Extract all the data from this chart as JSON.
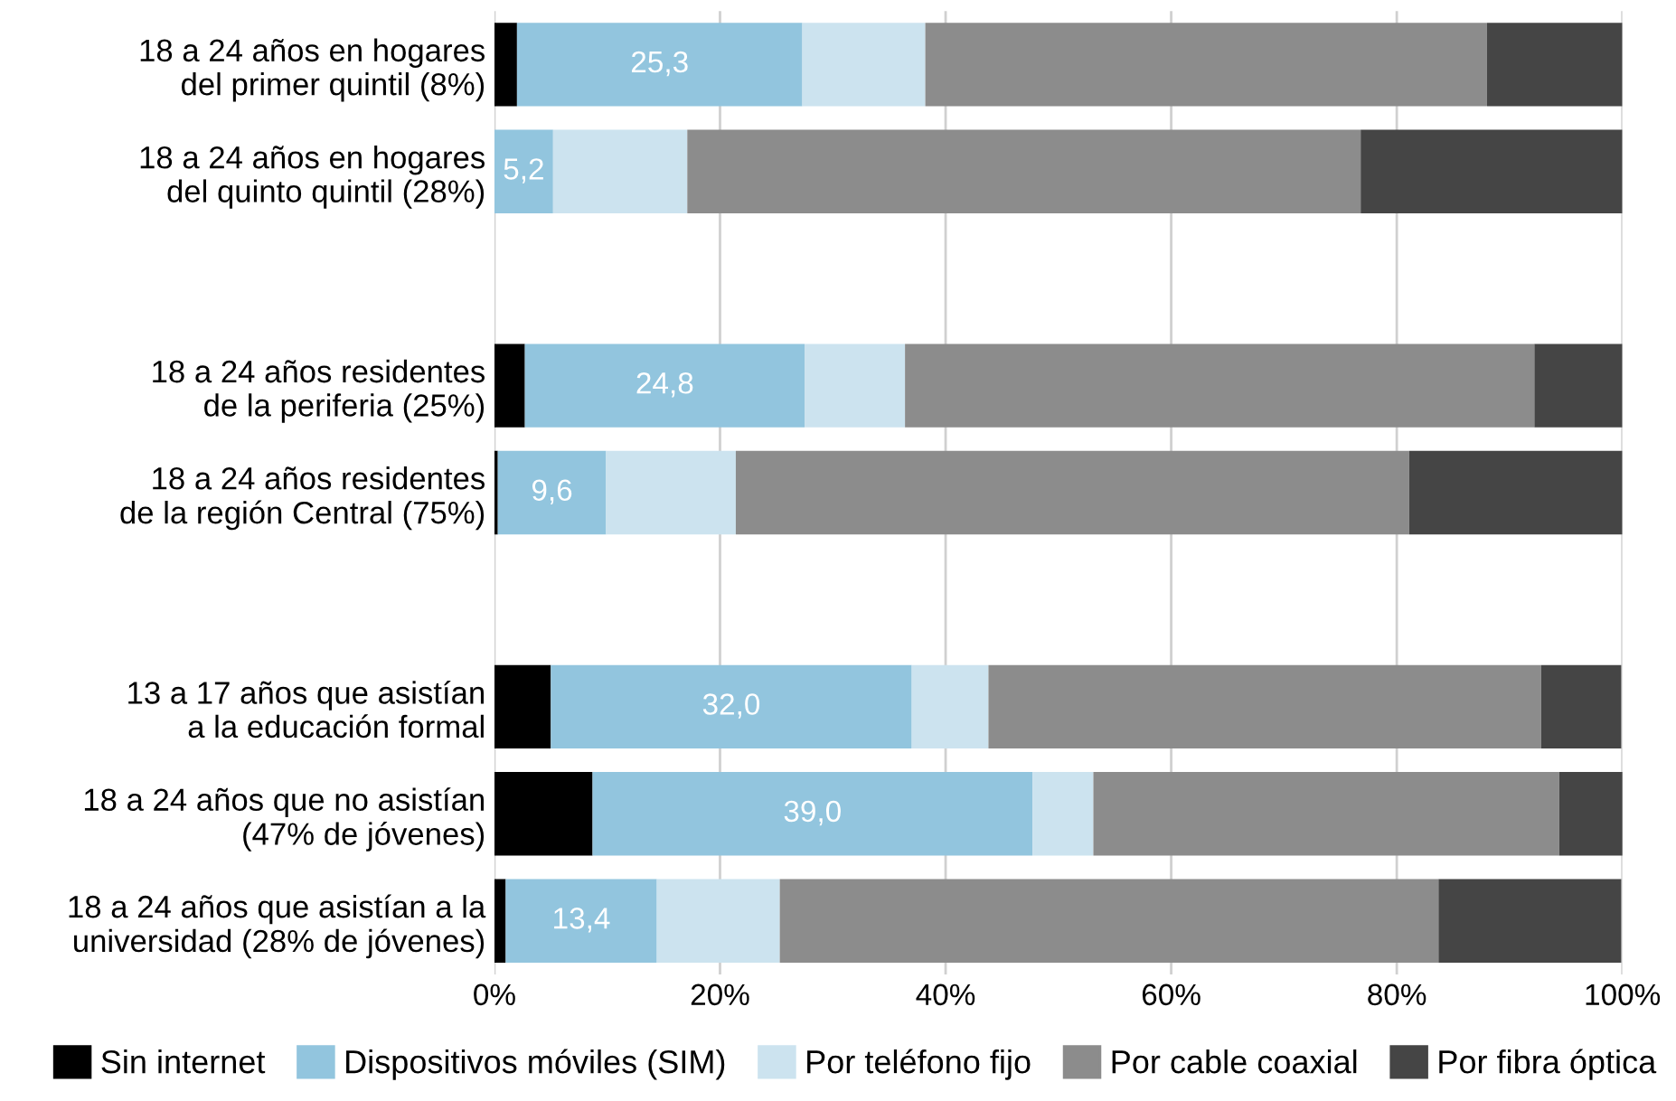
{
  "chart_data": {
    "type": "bar",
    "orientation": "horizontal",
    "stacked": true,
    "categories": [
      "18 a 24 años en hogares\ndel primer quintil (8%)",
      "18 a 24 años en hogares\ndel quinto quintil (28%)",
      null,
      "18 a 24 años residentes\nde la periferia (25%)",
      "18 a 24 años residentes\nde la región Central (75%)",
      null,
      "13 a 17 años que asistían\na la educación formal",
      "18 a 24 años que no asistían\n(47% de jóvenes)",
      "18 a 24 años que asistían a la\nuniversidad (28% de jóvenes)"
    ],
    "series": [
      {
        "name": "Sin internet",
        "color": "#000000",
        "values": [
          2.0,
          0,
          null,
          2.7,
          0.3,
          null,
          5.0,
          8.7,
          1.0
        ]
      },
      {
        "name": "Dispositivos móviles (SIM)",
        "color": "#92c5de",
        "values": [
          25.3,
          5.2,
          null,
          24.8,
          9.6,
          null,
          32.0,
          39.0,
          13.4
        ],
        "value_labels": [
          "25,3",
          "5,2",
          null,
          "24,8",
          "9,6",
          null,
          "32,0",
          "39,0",
          "13,4"
        ]
      },
      {
        "name": "Por teléfono fijo",
        "color": "#cce3ef",
        "values": [
          10.9,
          11.9,
          null,
          8.9,
          11.5,
          null,
          6.8,
          5.4,
          10.9
        ]
      },
      {
        "name": "Por cable coaxial",
        "color": "#8c8c8c",
        "values": [
          49.8,
          59.7,
          null,
          55.8,
          59.7,
          null,
          49.0,
          41.3,
          58.4
        ]
      },
      {
        "name": "Por fibra óptica",
        "color": "#454545",
        "values": [
          12.0,
          23.2,
          null,
          7.8,
          18.9,
          null,
          7.1,
          5.7,
          16.2
        ]
      }
    ],
    "xlim": [
      0,
      100
    ],
    "xticks": [
      {
        "value": 0,
        "label": "0%"
      },
      {
        "value": 20,
        "label": "20%"
      },
      {
        "value": 40,
        "label": "40%"
      },
      {
        "value": 60,
        "label": "60%"
      },
      {
        "value": 80,
        "label": "80%"
      },
      {
        "value": 100,
        "label": "100%"
      }
    ],
    "grid": "x",
    "legend": "bottom"
  }
}
